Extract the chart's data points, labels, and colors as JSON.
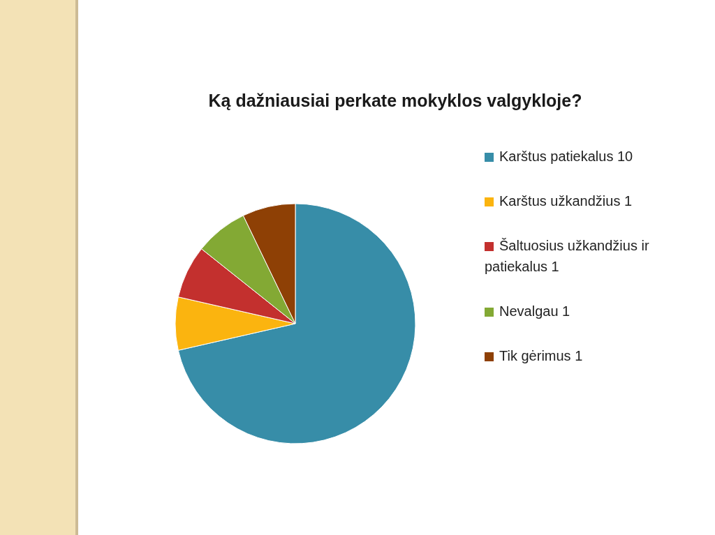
{
  "chart_data": {
    "type": "pie",
    "title": "Ką dažniausiai perkate mokyklos valgykloje?",
    "categories": [
      "Karštus patiekalus 10",
      "Karštus užkandžius 1",
      "Šaltuosius užkandžius ir patiekalus 1",
      "Nevalgau 1",
      "Tik gėrimus 1"
    ],
    "values": [
      10,
      1,
      1,
      1,
      1
    ],
    "colors": [
      "#378da8",
      "#fbb40f",
      "#c3302e",
      "#83a934",
      "#8e4005"
    ],
    "legend": "right"
  }
}
